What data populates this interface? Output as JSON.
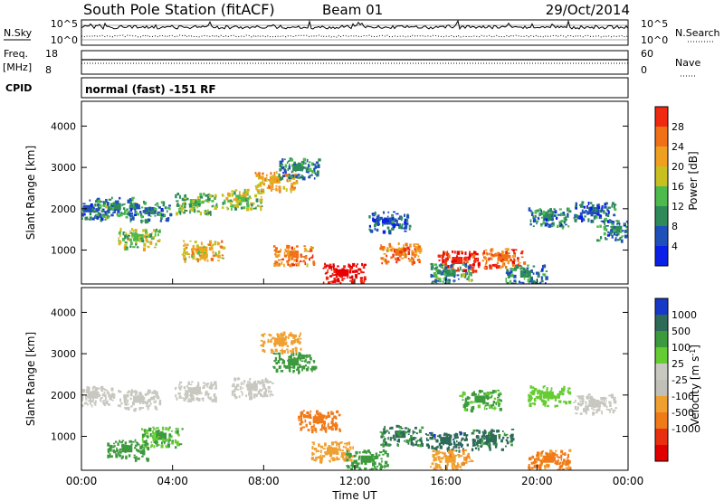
{
  "header": {
    "station_title": "South Pole Station (fitACF)",
    "beam": "Beam 01",
    "date": "29/Oct/2014"
  },
  "summary_panels": {
    "nsky_label": "N.Sky",
    "nsky_ticks": [
      "10^5",
      "10^0"
    ],
    "nsearch_label": "N.Search",
    "nsearch_ticks": [
      "10^5",
      "10^0"
    ],
    "freq_label": "Freq.",
    "freq_unit": "[MHz]",
    "freq_ticks": [
      "18",
      "8"
    ],
    "nave_label": "Nave",
    "nave_ticks": [
      "60",
      "0"
    ],
    "cpid_label": "CPID",
    "cpid_text": "normal (fast) -151 RF"
  },
  "colors": {
    "power_scale": [
      "#0a1fe8",
      "#1f4fb8",
      "#2f8a5a",
      "#4cbb4c",
      "#c8c020",
      "#f0a020",
      "#f07018",
      "#f02a10",
      "#e80000"
    ],
    "velocity_scale": [
      "#1838c8",
      "#2e6a58",
      "#3c9a3c",
      "#66cc33",
      "#c8c8c0",
      "#c0c0b8",
      "#f0a030",
      "#f07a18",
      "#e83010",
      "#e00000"
    ]
  },
  "chart_data": [
    {
      "type": "heatmap",
      "panel": "power",
      "ylabel": "Slant Range [km]",
      "ylim": [
        180,
        4600
      ],
      "yticks": [
        "1000",
        "2000",
        "3000",
        "4000"
      ],
      "xlim": [
        0,
        24
      ],
      "colorbar": {
        "label": "Power [dB]",
        "range": [
          0,
          32
        ],
        "ticks": [
          "4",
          "8",
          "12",
          "16",
          "20",
          "24",
          "28"
        ]
      },
      "cells": [
        [
          0.3,
          2000,
          6
        ],
        [
          1.5,
          2050,
          10
        ],
        [
          3,
          1950,
          8
        ],
        [
          5,
          2150,
          12
        ],
        [
          7,
          2250,
          14
        ],
        [
          8.5,
          2700,
          20
        ],
        [
          9.5,
          3000,
          8
        ],
        [
          2.5,
          1300,
          14
        ],
        [
          5.3,
          1000,
          18
        ],
        [
          9.3,
          900,
          22
        ],
        [
          11.5,
          450,
          30
        ],
        [
          14,
          950,
          22
        ],
        [
          16.5,
          750,
          28
        ],
        [
          18.5,
          820,
          24
        ],
        [
          20.5,
          1800,
          8
        ],
        [
          22.5,
          1950,
          6
        ],
        [
          23.5,
          1500,
          8
        ],
        [
          16.2,
          450,
          10
        ],
        [
          19.5,
          420,
          8
        ],
        [
          13.5,
          1700,
          6
        ]
      ]
    },
    {
      "type": "heatmap",
      "panel": "velocity",
      "ylabel": "Slant Range [km]",
      "xlabel": "Time UT",
      "ylim": [
        180,
        4600
      ],
      "yticks": [
        "1000",
        "2000",
        "3000",
        "4000"
      ],
      "xlim": [
        0,
        24
      ],
      "xticks": [
        "00:00",
        "04:00",
        "08:00",
        "12:00",
        "16:00",
        "20:00",
        "00:00"
      ],
      "colorbar": {
        "label": "Velocity [m s",
        "label_sup": "-1",
        "label_end": "]",
        "ticks": [
          "1000",
          "500",
          "100",
          "25",
          "-25",
          "-100",
          "-500",
          "-1000"
        ]
      },
      "cells": [
        [
          0.5,
          2000,
          0
        ],
        [
          2.5,
          1900,
          0
        ],
        [
          5,
          2100,
          0
        ],
        [
          7.5,
          2200,
          0
        ],
        [
          9.3,
          2800,
          200
        ],
        [
          8.7,
          3300,
          -150
        ],
        [
          10.4,
          1400,
          -700
        ],
        [
          11,
          650,
          -300
        ],
        [
          12.5,
          450,
          150
        ],
        [
          14,
          1050,
          500
        ],
        [
          16,
          900,
          800
        ],
        [
          18,
          950,
          600
        ],
        [
          16.2,
          450,
          -400
        ],
        [
          20.5,
          2000,
          60
        ],
        [
          22.5,
          1800,
          0
        ],
        [
          17.5,
          1900,
          120
        ],
        [
          3.5,
          1000,
          100
        ],
        [
          2,
          700,
          300
        ],
        [
          20.5,
          450,
          -600
        ]
      ]
    }
  ]
}
